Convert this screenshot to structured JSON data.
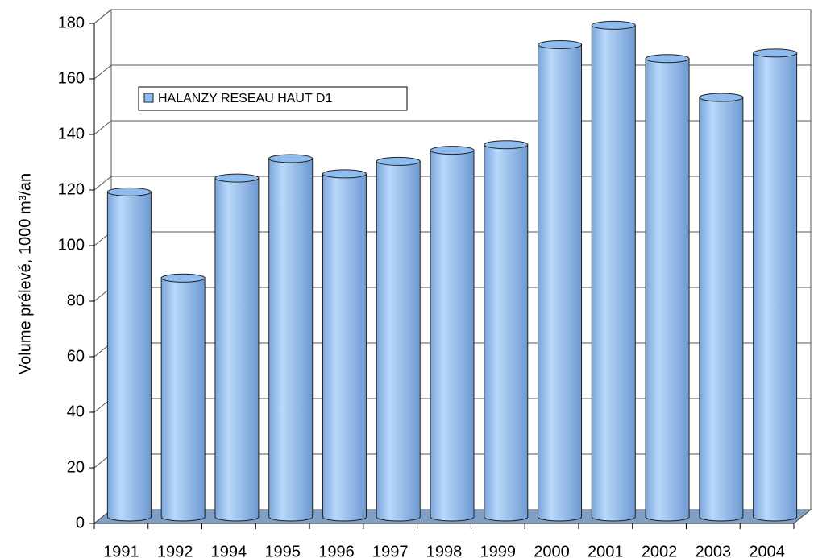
{
  "chart_data": {
    "type": "bar",
    "y_label": "Volume prélevé, 1000 m³/an",
    "categories": [
      "1991",
      "1992",
      "1994",
      "1995",
      "1996",
      "1997",
      "1998",
      "1999",
      "2000",
      "2001",
      "2002",
      "2003",
      "2004"
    ],
    "series": [
      {
        "name": "HALANZY RESEAU HAUT D1",
        "color": "#8fbcef",
        "values": [
          117,
          86,
          122,
          129,
          123.5,
          128,
          132,
          134,
          170,
          177,
          165,
          151,
          167
        ]
      }
    ],
    "ylim": [
      0,
      180
    ],
    "yticks": [
      0,
      20,
      40,
      60,
      80,
      100,
      120,
      140,
      160,
      180
    ],
    "grid": true
  }
}
